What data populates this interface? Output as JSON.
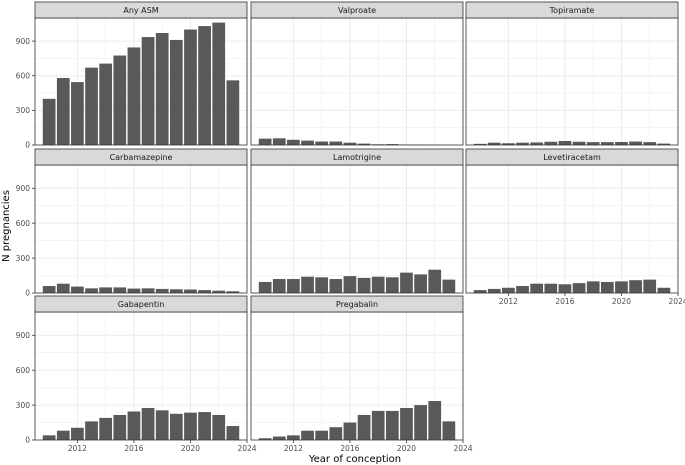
{
  "chart_data": {
    "type": "bar",
    "xlabel": "Year of conception",
    "ylabel": "N pregnancies",
    "ylim": [
      0,
      1100
    ],
    "y_ticks": [
      0,
      300,
      600,
      900
    ],
    "x_ticks": [
      2012,
      2016,
      2020,
      2024
    ],
    "x_range": [
      2009,
      2024
    ],
    "years": [
      2010,
      2011,
      2012,
      2013,
      2014,
      2015,
      2016,
      2017,
      2018,
      2019,
      2020,
      2021,
      2022,
      2023
    ],
    "colors": {
      "bar": "#595959",
      "strip": "#d9d9d9",
      "grid": "#ebebeb",
      "border": "#333333"
    },
    "series": [
      {
        "name": "Any ASM",
        "values": [
          400,
          580,
          545,
          670,
          705,
          775,
          845,
          935,
          970,
          910,
          1000,
          1030,
          1060,
          560
        ]
      },
      {
        "name": "Valproate",
        "values": [
          55,
          58,
          45,
          38,
          30,
          30,
          20,
          12,
          6,
          8,
          4,
          3,
          2,
          0
        ]
      },
      {
        "name": "Topiramate",
        "values": [
          10,
          20,
          15,
          20,
          22,
          28,
          35,
          28,
          25,
          25,
          26,
          30,
          25,
          12
        ]
      },
      {
        "name": "Carbamazepine",
        "values": [
          60,
          80,
          55,
          40,
          48,
          48,
          38,
          40,
          35,
          32,
          30,
          25,
          20,
          15
        ]
      },
      {
        "name": "Lamotrigine",
        "values": [
          95,
          120,
          120,
          140,
          135,
          120,
          145,
          130,
          140,
          135,
          175,
          160,
          200,
          115
        ]
      },
      {
        "name": "Levetiracetam",
        "values": [
          25,
          35,
          45,
          60,
          80,
          80,
          75,
          85,
          100,
          95,
          100,
          110,
          115,
          45
        ]
      },
      {
        "name": "Gabapentin",
        "values": [
          40,
          80,
          105,
          160,
          190,
          215,
          245,
          275,
          255,
          225,
          235,
          240,
          215,
          120
        ]
      },
      {
        "name": "Pregabalin",
        "values": [
          15,
          30,
          40,
          80,
          80,
          110,
          150,
          215,
          250,
          250,
          275,
          300,
          335,
          160
        ]
      }
    ]
  }
}
